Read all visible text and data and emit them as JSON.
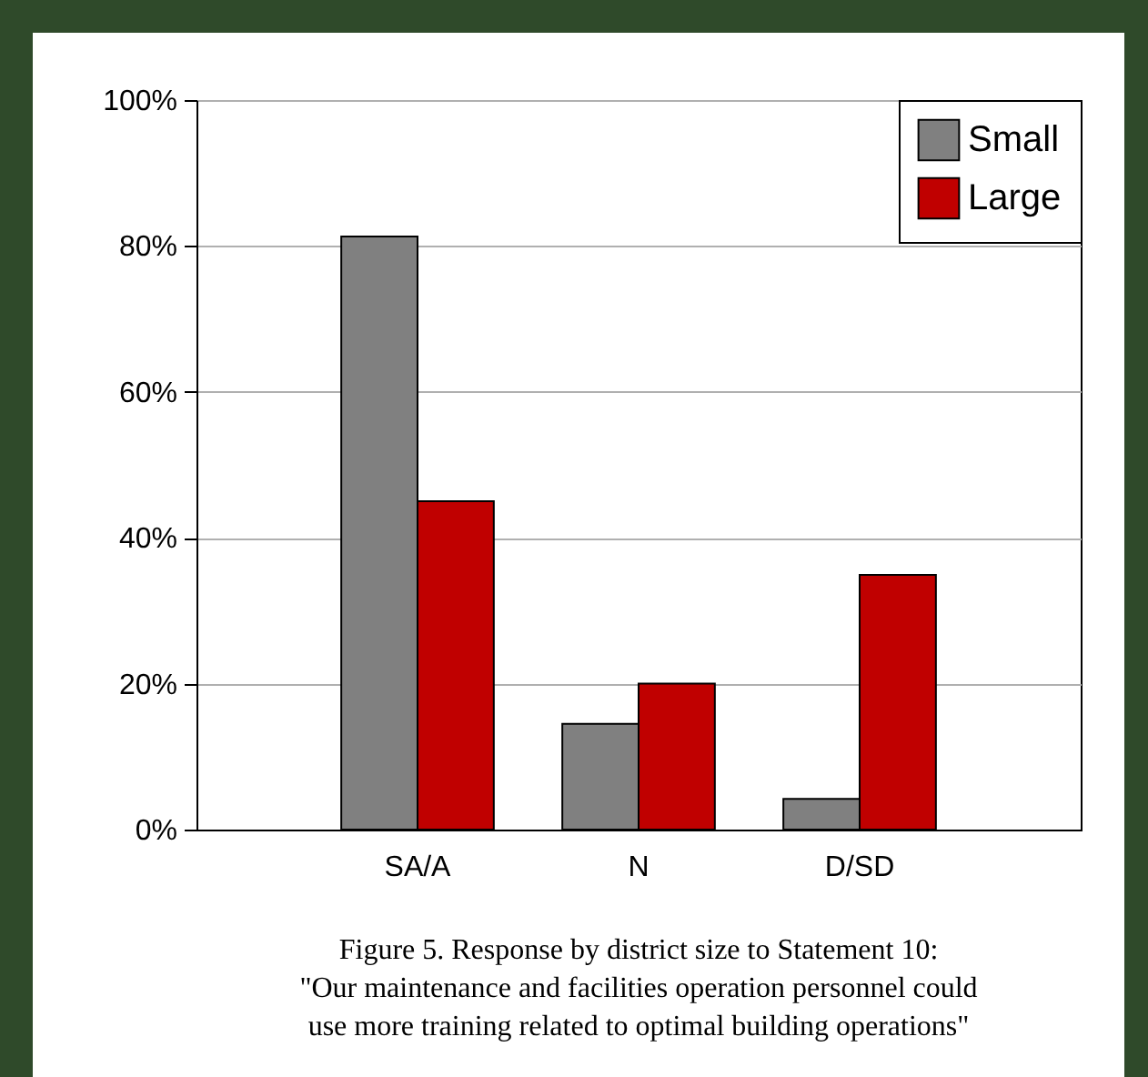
{
  "chart_data": {
    "type": "bar",
    "categories": [
      "SA/A",
      "N",
      "D/SD"
    ],
    "series": [
      {
        "name": "Small",
        "color": "#808080",
        "values": [
          81.3,
          14.5,
          4.2
        ]
      },
      {
        "name": "Large",
        "color": "#c00000",
        "values": [
          45,
          20,
          34.9
        ]
      }
    ],
    "ylim": [
      0,
      100
    ],
    "yticks": [
      {
        "value": 0,
        "label": "0%"
      },
      {
        "value": 20,
        "label": "20%"
      },
      {
        "value": 40,
        "label": "40%"
      },
      {
        "value": 60,
        "label": "60%"
      },
      {
        "value": 80,
        "label": "80%"
      },
      {
        "value": 100,
        "label": "100%"
      }
    ],
    "grid": "y",
    "legend": "top right",
    "annotations": [
      "Figure 5.     Response by district size to Statement 10:",
      "\"Our maintenance and facilities operation personnel could",
      "use more training related to optimal building operations\""
    ]
  }
}
